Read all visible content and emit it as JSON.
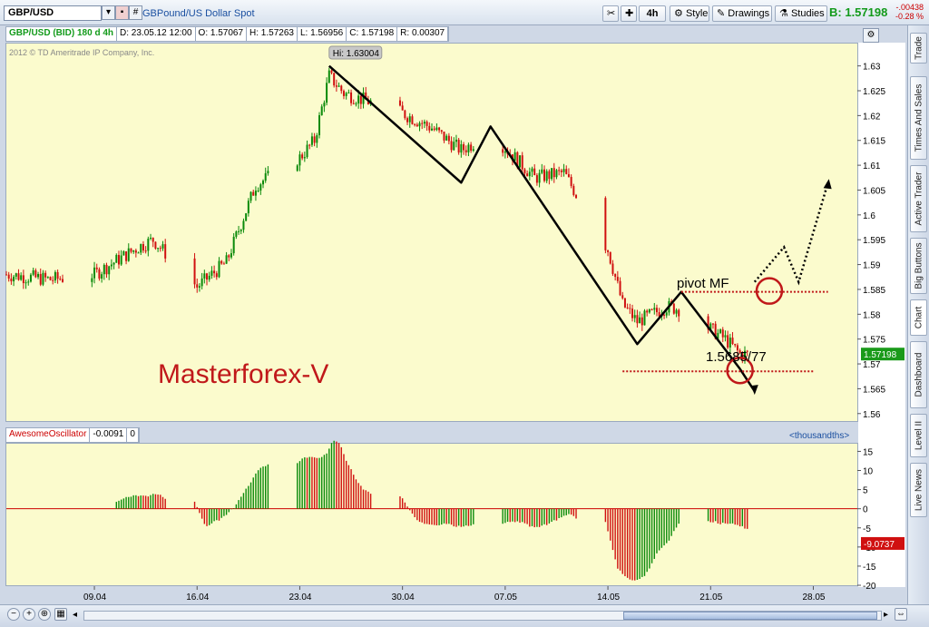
{
  "toolbar": {
    "symbol": "GBP/USD",
    "description": "GBPound/US Dollar Spot",
    "aggregation": "4h",
    "style_label": "Style",
    "drawings_label": "Drawings",
    "studies_label": "Studies",
    "bid_label": "B:",
    "bid_value": "1.57198",
    "net_change": "-.00438",
    "pct_change": "-0.28 %",
    "symbol_menu_icon": "triangle-down-icon",
    "link_icon": "link-icon",
    "chart_grid_icon": "grid-icon"
  },
  "infobar": {
    "symbol": "GBP/USD (BID) 180 d 4h",
    "date": "D: 23.05.12 12:00",
    "open": "O: 1.57067",
    "high": "H: 1.57263",
    "low": "L: 1.56956",
    "close": "C: 1.57198",
    "range": "R: 0.00307"
  },
  "price_pane": {
    "copyright": "2012 © TD Ameritrade IP Company, Inc.",
    "high_marker": "Hi: 1.63004",
    "watermark": "Masterforex-V",
    "annotation_pivot": "pivot MF",
    "annotation_level": "1.5685/77",
    "last_price_tag": "1.57198",
    "y_ticks": [
      "1.63",
      "1.625",
      "1.62",
      "1.615",
      "1.61",
      "1.605",
      "1.6",
      "1.595",
      "1.59",
      "1.585",
      "1.58",
      "1.575",
      "1.57",
      "1.565",
      "1.56"
    ]
  },
  "osc_pane": {
    "name": "AwesomeOscillator",
    "value": "-0.0091",
    "extra": "0",
    "unit": "<thousandths>",
    "y_ticks": [
      "15",
      "10",
      "5",
      "0",
      "-5",
      "-10",
      "-15",
      "-20"
    ],
    "last_value_tag": "-9.0737"
  },
  "x_axis": {
    "ticks": [
      "09.04",
      "16.04",
      "23.04",
      "30.04",
      "07.05",
      "14.05",
      "21.05",
      "28.05"
    ]
  },
  "sidebar": {
    "tabs": [
      "Trade",
      "Times And Sales",
      "Active Trader",
      "Big Buttons",
      "Chart",
      "Dashboard",
      "Level II",
      "Live News"
    ]
  },
  "colors": {
    "up": "#0a8a0a",
    "down": "#d01010",
    "pane_bg": "#fbfbcd",
    "watermark": "#c0181a",
    "annotation_red": "#c0181a"
  },
  "chart_data": [
    {
      "type": "candlestick",
      "title": "GBP/USD (BID) 180 d 4h",
      "ylim": [
        1.5585,
        1.6345
      ],
      "xlim": [
        "2012-04-03",
        "2012-05-31"
      ],
      "x_ticks": [
        "09.04",
        "16.04",
        "23.04",
        "30.04",
        "07.05",
        "14.05",
        "21.05",
        "28.05"
      ],
      "swing_path": [
        {
          "x": "2012-04-25",
          "y": 1.63
        },
        {
          "x": "2012-05-04",
          "y": 1.6065
        },
        {
          "x": "2012-05-06",
          "y": 1.6178
        },
        {
          "x": "2012-05-16",
          "y": 1.574
        },
        {
          "x": "2012-05-19",
          "y": 1.5845
        },
        {
          "x": "2012-05-23",
          "y": 1.569
        },
        {
          "x": "2012-05-24",
          "y": 1.5645
        }
      ],
      "projection": [
        {
          "x": "2012-05-24",
          "y": 1.5865
        },
        {
          "x": "2012-05-26",
          "y": 1.5935
        },
        {
          "x": "2012-05-27",
          "y": 1.5865
        },
        {
          "x": "2012-05-29",
          "y": 1.6065
        }
      ],
      "levels": [
        {
          "label": "pivot MF",
          "y": 1.5845
        },
        {
          "label": "1.5685/77",
          "y": 1.5685
        }
      ],
      "high": 1.63004,
      "last": 1.57198
    },
    {
      "type": "bar",
      "title": "AwesomeOscillator",
      "ylabel": "<thousandths>",
      "ylim": [
        -20,
        17
      ],
      "last": -9.0737
    }
  ]
}
